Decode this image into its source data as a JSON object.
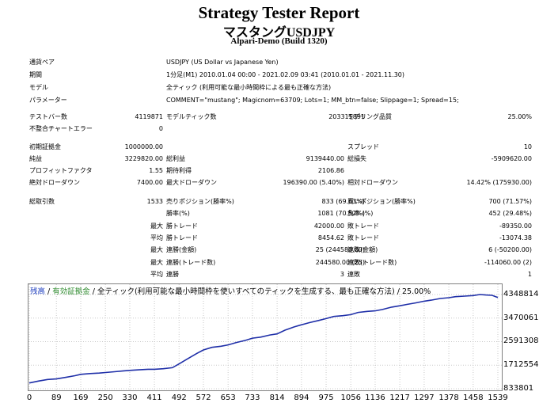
{
  "header": {
    "title": "Strategy Tester Report",
    "subtitle": "マスタングUSDJPY",
    "build": "Alpari-Demo (Build 1320)"
  },
  "settings": [
    {
      "label": "通貨ペア",
      "value": "USDJPY (US Dollar vs Japanese Yen)"
    },
    {
      "label": "期間",
      "value": "1分足(M1) 2010.01.04 00:00 - 2021.02.09 03:41 (2010.01.01 - 2021.11.30)"
    },
    {
      "label": "モデル",
      "value": "全ティック (利用可能な最小時間枠による最も正確な方法)"
    },
    {
      "label": "パラメーター",
      "value": "COMMENT=\"mustang\"; Magicnom=63709; Lots=1; MM_btn=false; Slippage=1; Spread=15;"
    }
  ],
  "stats": {
    "bars_label": "テストバー数",
    "bars_value": "4119871",
    "ticks_label": "モデルティック数",
    "ticks_value": "203315891",
    "quality_label": "モデリング品質",
    "quality_value": "25.00%",
    "mismatch_label": "不整合チャートエラー",
    "mismatch_value": "0",
    "deposit_label": "初期証拠金",
    "deposit_value": "1000000.00",
    "spread_label": "スプレッド",
    "spread_value": "10",
    "net_label": "純益",
    "net_value": "3229820.00",
    "gross_profit_label": "総利益",
    "gross_profit_value": "9139440.00",
    "gross_loss_label": "総損失",
    "gross_loss_value": "-5909620.00",
    "pf_label": "プロフィットファクタ",
    "pf_value": "1.55",
    "payoff_label": "期待利得",
    "payoff_value": "2106.86",
    "abs_dd_label": "絶対ドローダウン",
    "abs_dd_value": "7400.00",
    "max_dd_label": "最大ドローダウン",
    "max_dd_value": "196390.00 (5.40%)",
    "rel_dd_label": "相対ドローダウン",
    "rel_dd_value": "14.42% (175930.00)",
    "trades_label": "総取引数",
    "trades_value": "1533",
    "short_label": "売りポジション(勝率%)",
    "short_value": "833 (69.63%)",
    "long_label": "買いポジション(勝率%)",
    "long_value": "700 (71.57%)",
    "win_label": "勝率(%)",
    "win_value": "1081 (70.52%)",
    "loss_label": "負率 (%)",
    "loss_value": "452 (29.48%)",
    "max_prefix": "最大",
    "avg_prefix": "平均",
    "largest_win_label": "勝トレード",
    "largest_win_value": "42000.00",
    "largest_loss_label": "敗トレード",
    "largest_loss_value": "-89350.00",
    "avg_win_label": "勝トレード",
    "avg_win_value": "8454.62",
    "avg_loss_label": "敗トレード",
    "avg_loss_value": "-13074.38",
    "max_cons_wins_label": "連勝(金額)",
    "max_cons_wins_value": "25 (244580.00)",
    "max_cons_losses_label": "連敗(金額)",
    "max_cons_losses_value": "6 (-50200.00)",
    "max_cons_profit_label": "連勝(トレード数)",
    "max_cons_profit_value": "244580.00 (25)",
    "max_cons_loss_label": "連敗(トレード数)",
    "max_cons_loss_value": "-114060.00 (2)",
    "avg_cons_wins_label": "連勝",
    "avg_cons_wins_value": "3",
    "avg_cons_losses_label": "連敗",
    "avg_cons_losses_value": "1"
  },
  "legend": {
    "balance": "残高",
    "sep1": " / ",
    "equity": "有効証拠金",
    "sep2": " / ",
    "model": "全ティック(利用可能な最小時間枠を使いすべてのティックを生成する、最も正確な方法) / 25.00%"
  },
  "colors": {
    "balance_line": "#1f2fa8",
    "grid": "#c8c8c8",
    "frame": "#808080"
  },
  "chart_data": {
    "type": "line",
    "title": "",
    "xlabel": "",
    "ylabel": "",
    "x_ticks": [
      "0",
      "89",
      "169",
      "250",
      "330",
      "411",
      "492",
      "572",
      "653",
      "733",
      "814",
      "894",
      "975",
      "1056",
      "1136",
      "1217",
      "1297",
      "1378",
      "1458",
      "1539"
    ],
    "y_ticks": [
      "4348814",
      "3470061",
      "2591308",
      "1712554",
      "833801"
    ],
    "ylim": [
      833801,
      4348814
    ],
    "xlim": [
      0,
      1539
    ],
    "series": [
      {
        "x": [
          0,
          30,
          60,
          89,
          120,
          150,
          169,
          200,
          230,
          250,
          280,
          310,
          330,
          360,
          390,
          411,
          440,
          470,
          492,
          520,
          550,
          572,
          600,
          630,
          653,
          680,
          710,
          733,
          760,
          790,
          814,
          840,
          870,
          894,
          920,
          950,
          975,
          1000,
          1030,
          1056,
          1080,
          1110,
          1136,
          1160,
          1190,
          1217,
          1240,
          1270,
          1297,
          1320,
          1350,
          1378,
          1400,
          1430,
          1458,
          1480,
          1500,
          1520,
          1539
        ],
        "values": [
          1050000,
          1120000,
          1180000,
          1200000,
          1260000,
          1320000,
          1370000,
          1400000,
          1420000,
          1440000,
          1470000,
          1500000,
          1520000,
          1540000,
          1560000,
          1560000,
          1580000,
          1620000,
          1760000,
          1950000,
          2150000,
          2280000,
          2380000,
          2420000,
          2470000,
          2560000,
          2640000,
          2720000,
          2760000,
          2840000,
          2880000,
          3020000,
          3140000,
          3220000,
          3300000,
          3380000,
          3450000,
          3530000,
          3560000,
          3600000,
          3680000,
          3720000,
          3740000,
          3790000,
          3880000,
          3930000,
          3980000,
          4040000,
          4100000,
          4140000,
          4200000,
          4230000,
          4270000,
          4290000,
          4310000,
          4350000,
          4330000,
          4320000,
          4240000
        ]
      }
    ]
  }
}
